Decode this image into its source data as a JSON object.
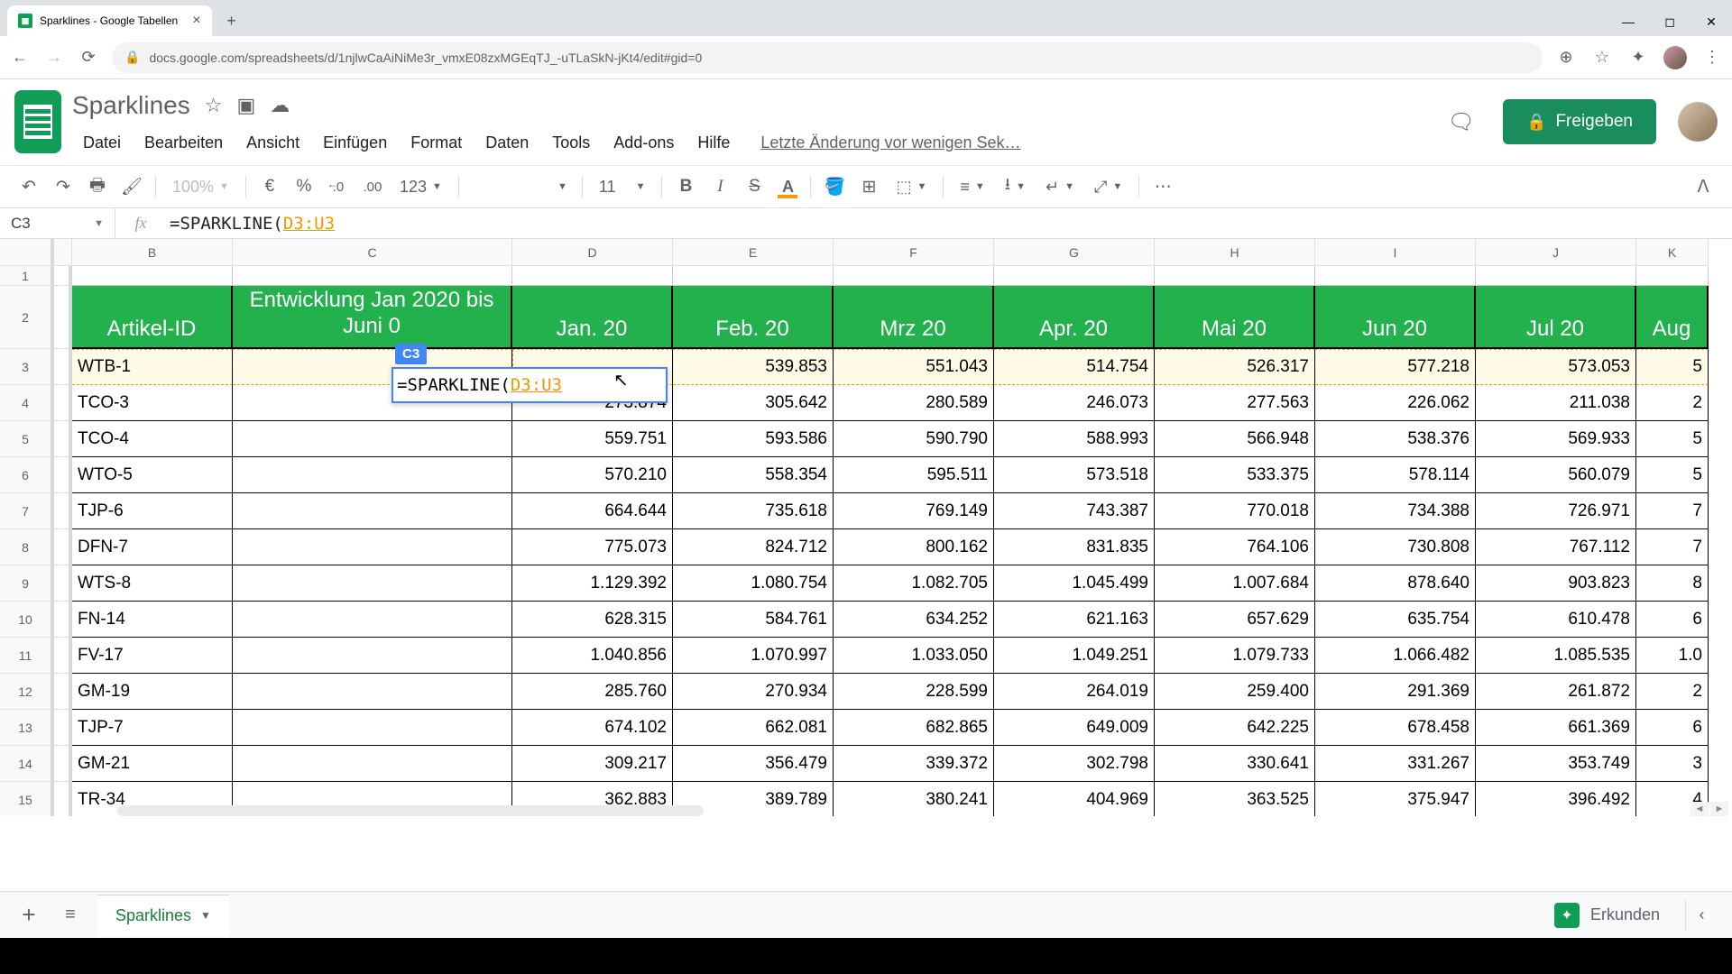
{
  "browser": {
    "tab_title": "Sparklines - Google Tabellen",
    "url": "docs.google.com/spreadsheets/d/1njlwCaAiNiMe3r_vmxE08zxMGEqTJ_-uTLaSkN-jKt4/edit#gid=0"
  },
  "doc": {
    "title": "Sparklines",
    "menus": [
      "Datei",
      "Bearbeiten",
      "Ansicht",
      "Einfügen",
      "Format",
      "Daten",
      "Tools",
      "Add-ons",
      "Hilfe"
    ],
    "last_edit": "Letzte Änderung vor wenigen Sek…",
    "share_label": "Freigeben"
  },
  "toolbar": {
    "zoom": "100%",
    "currency": "€",
    "percent": "%",
    "dec_dec": ".0",
    "dec_inc": ".00",
    "format_123": "123",
    "font_size": "11"
  },
  "formula_bar": {
    "cell_ref": "C3",
    "prefix": "=SPARKLINE(",
    "range": "D3:U3"
  },
  "editing": {
    "badge": "C3",
    "prefix": "=SPARKLINE(",
    "range": "D3:U3"
  },
  "columns": [
    "B",
    "C",
    "D",
    "E",
    "F",
    "G",
    "H",
    "I",
    "J",
    "K"
  ],
  "header_row": {
    "B": "Artikel-ID",
    "C": "Entwicklung Jan 2020 bis Juni     0",
    "D": "Jan. 20",
    "E": "Feb. 20",
    "F": "Mrz 20",
    "G": "Apr. 20",
    "H": "Mai 20",
    "I": "Jun 20",
    "J": "Jul 20",
    "K": "Aug"
  },
  "rows": [
    {
      "n": "3",
      "id": "WTB-1",
      "vals": [
        "",
        "539.853",
        "551.043",
        "514.754",
        "526.317",
        "577.218",
        "573.053",
        "5"
      ]
    },
    {
      "n": "4",
      "id": "TCO-3",
      "vals": [
        "273.874",
        "305.642",
        "280.589",
        "246.073",
        "277.563",
        "226.062",
        "211.038",
        "2"
      ]
    },
    {
      "n": "5",
      "id": "TCO-4",
      "vals": [
        "559.751",
        "593.586",
        "590.790",
        "588.993",
        "566.948",
        "538.376",
        "569.933",
        "5"
      ]
    },
    {
      "n": "6",
      "id": "WTO-5",
      "vals": [
        "570.210",
        "558.354",
        "595.511",
        "573.518",
        "533.375",
        "578.114",
        "560.079",
        "5"
      ]
    },
    {
      "n": "7",
      "id": "TJP-6",
      "vals": [
        "664.644",
        "735.618",
        "769.149",
        "743.387",
        "770.018",
        "734.388",
        "726.971",
        "7"
      ]
    },
    {
      "n": "8",
      "id": "DFN-7",
      "vals": [
        "775.073",
        "824.712",
        "800.162",
        "831.835",
        "764.106",
        "730.808",
        "767.112",
        "7"
      ]
    },
    {
      "n": "9",
      "id": "WTS-8",
      "vals": [
        "1.129.392",
        "1.080.754",
        "1.082.705",
        "1.045.499",
        "1.007.684",
        "878.640",
        "903.823",
        "8"
      ]
    },
    {
      "n": "10",
      "id": "FN-14",
      "vals": [
        "628.315",
        "584.761",
        "634.252",
        "621.163",
        "657.629",
        "635.754",
        "610.478",
        "6"
      ]
    },
    {
      "n": "11",
      "id": "FV-17",
      "vals": [
        "1.040.856",
        "1.070.997",
        "1.033.050",
        "1.049.251",
        "1.079.733",
        "1.066.482",
        "1.085.535",
        "1.0"
      ]
    },
    {
      "n": "12",
      "id": "GM-19",
      "vals": [
        "285.760",
        "270.934",
        "228.599",
        "264.019",
        "259.400",
        "291.369",
        "261.872",
        "2"
      ]
    },
    {
      "n": "13",
      "id": "TJP-7",
      "vals": [
        "674.102",
        "662.081",
        "682.865",
        "649.009",
        "642.225",
        "678.458",
        "661.369",
        "6"
      ]
    },
    {
      "n": "14",
      "id": "GM-21",
      "vals": [
        "309.217",
        "356.479",
        "339.372",
        "302.798",
        "330.641",
        "331.267",
        "353.749",
        "3"
      ]
    },
    {
      "n": "15",
      "id": "TR-34",
      "vals": [
        "362.883",
        "389.789",
        "380.241",
        "404.969",
        "363.525",
        "375.947",
        "396.492",
        "4"
      ]
    }
  ],
  "sheet_tab": "Sparklines",
  "explore_label": "Erkunden",
  "colors": {
    "header_green": "#23b14d",
    "accent_orange": "#ff9800",
    "ref_orange": "#f29900",
    "selection_blue": "#4285f4"
  }
}
